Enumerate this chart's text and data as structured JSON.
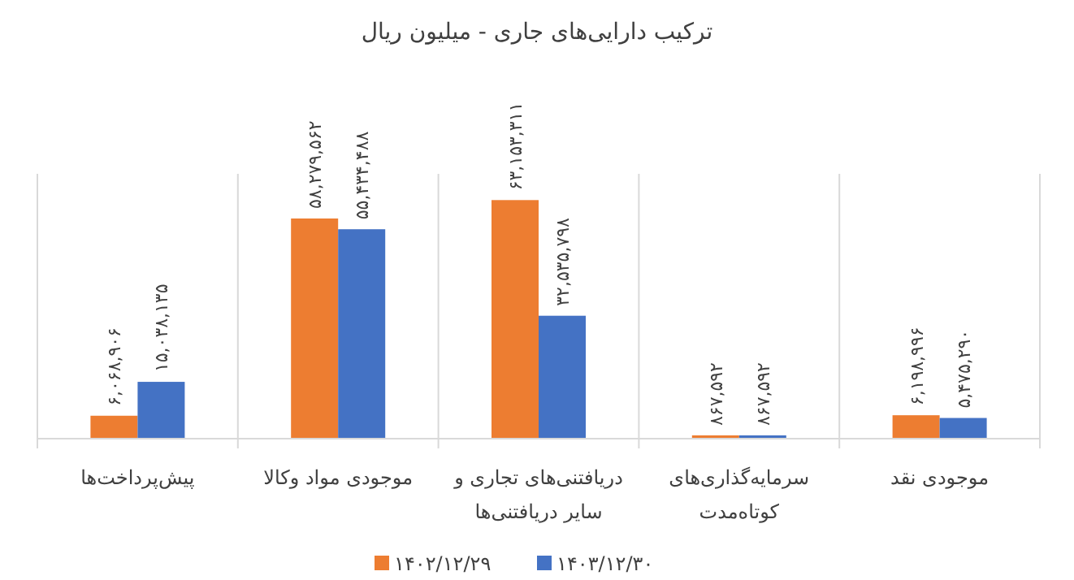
{
  "chart_data": {
    "type": "bar",
    "title": "ترکیب دارایی‌های جاری - میلیون ریال",
    "categories": [
      "پیش‌پرداخت‌ها",
      "موجودی مواد وکالا",
      "دریافتنی‌های تجاری و سایر دریافتنی‌ها",
      "سرمایه‌گذاری‌های کوتاه‌مدت",
      "موجودی نقد"
    ],
    "series": [
      {
        "name": "۱۴۰۲/۱۲/۲۹",
        "color": "#ed7d31",
        "values": [
          6068906,
          58279562,
          63153311,
          867592,
          6198996
        ],
        "value_labels": [
          "۶,۰۶۸,۹۰۶",
          "۵۸,۲۷۹,۵۶۲",
          "۶۳,۱۵۳,۳۱۱",
          "۸۶۷,۵۹۲",
          "۶,۱۹۸,۹۹۶"
        ]
      },
      {
        "name": "۱۴۰۳/۱۲/۳۰",
        "color": "#4472c4",
        "values": [
          15038135,
          55434488,
          32535798,
          867592,
          5475290
        ],
        "value_labels": [
          "۱۵,۰۳۸,۱۳۵",
          "۵۵,۴۳۴,۴۸۸",
          "۳۲,۵۳۵,۷۹۸",
          "۸۶۷,۵۹۲",
          "۵,۴۷۵,۲۹۰"
        ]
      }
    ],
    "grid": "x",
    "legend": "bottom"
  }
}
